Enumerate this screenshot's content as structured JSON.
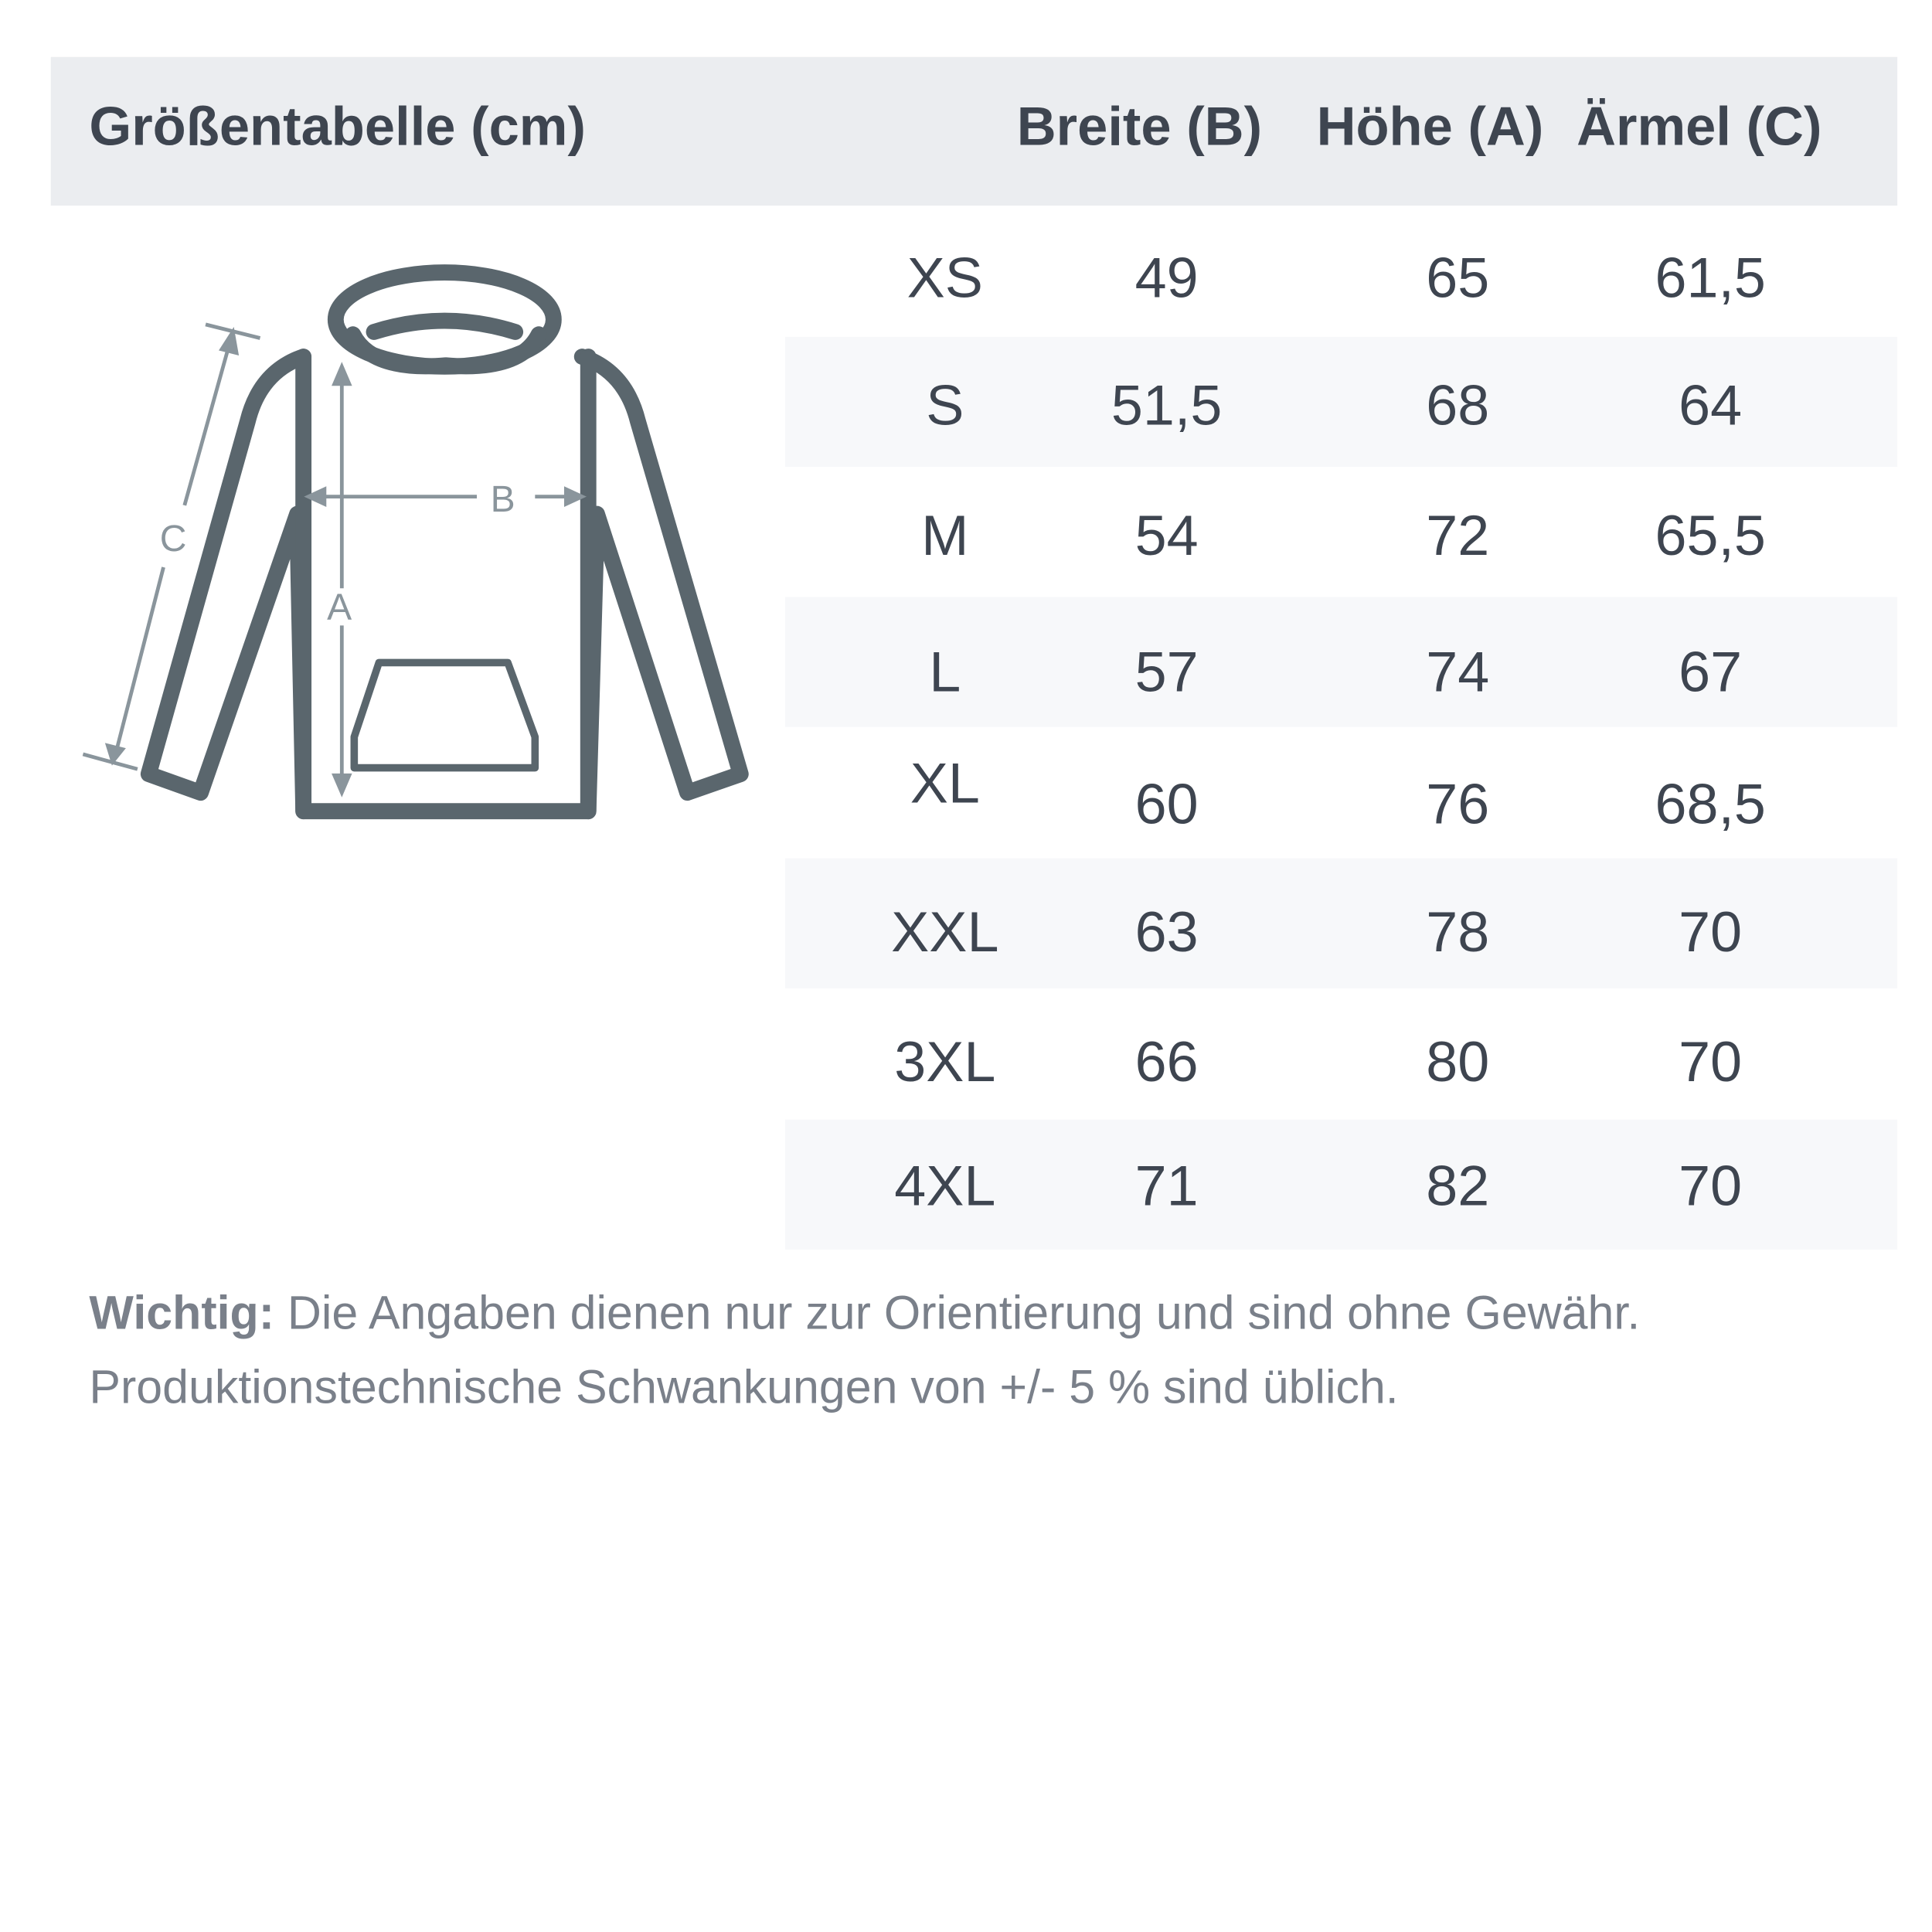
{
  "header": {
    "title": "Größentabelle (cm)",
    "columns": [
      "Breite (B)",
      "Höhe (A)",
      "Ärmel (C)"
    ]
  },
  "diagram": {
    "labels": {
      "a": "A",
      "b": "B",
      "c": "C"
    },
    "colors": {
      "outline": "#5a666d",
      "measure": "#8a959c"
    }
  },
  "rows": [
    {
      "size": "XS",
      "breite": "49",
      "hoehe": "65",
      "aermel": "61,5"
    },
    {
      "size": "S",
      "breite": "51,5",
      "hoehe": "68",
      "aermel": "64"
    },
    {
      "size": "M",
      "breite": "54",
      "hoehe": "72",
      "aermel": "65,5"
    },
    {
      "size": "L",
      "breite": "57",
      "hoehe": "74",
      "aermel": "67"
    },
    {
      "size": "XL",
      "breite": "60",
      "hoehe": "76",
      "aermel": "68,5"
    },
    {
      "size": "XXL",
      "breite": "63",
      "hoehe": "78",
      "aermel": "70"
    },
    {
      "size": "3XL",
      "breite": "66",
      "hoehe": "80",
      "aermel": "70"
    },
    {
      "size": "4XL",
      "breite": "71",
      "hoehe": "82",
      "aermel": "70"
    }
  ],
  "note": {
    "label": "Wichtig:",
    "line1": " Die Angaben dienen nur zur Orientierung und sind ohne Gewähr.",
    "line2": "Produktionstechnische Schwankungen von +/- 5 % sind üblich."
  },
  "colors": {
    "header_bg": "#ebedf0",
    "alt_row_bg": "#f7f8fa",
    "text": "#3e4550",
    "note_text": "#7a808a"
  }
}
